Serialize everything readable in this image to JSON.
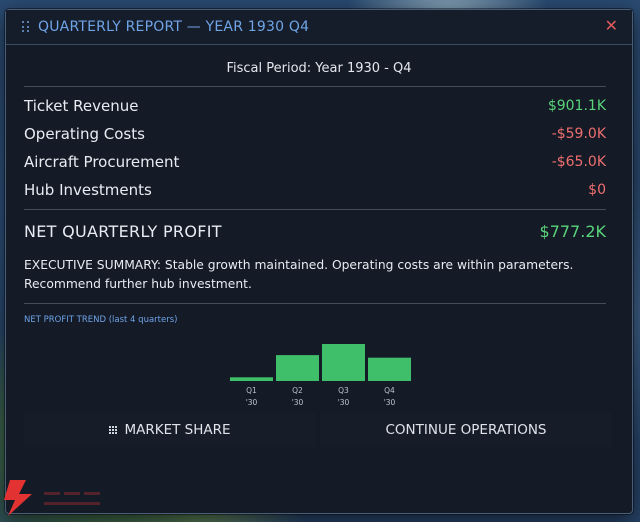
{
  "window": {
    "title": "QUARTERLY REPORT  —  YEAR 1930  Q4",
    "close_label": "✕",
    "fiscal_period": "Fiscal Period: Year 1930 - Q4"
  },
  "financials": [
    {
      "label": "Ticket Revenue",
      "value": "$901.1K",
      "kind": "positive"
    },
    {
      "label": "Operating Costs",
      "value": "-$59.0K",
      "kind": "negative"
    },
    {
      "label": "Aircraft Procurement",
      "value": "-$65.0K",
      "kind": "negative"
    },
    {
      "label": "Hub Investments",
      "value": "$0",
      "kind": "negative"
    }
  ],
  "net_profit": {
    "label": "NET QUARTERLY PROFIT",
    "value": "$777.2K"
  },
  "summary": "EXECUTIVE SUMMARY: Stable growth maintained. Operating costs are within parameters. Recommend further hub investment.",
  "trend_label": "NET PROFIT TREND  (last 4 quarters)",
  "chart_data": {
    "type": "bar",
    "categories": [
      "Q1",
      "Q2",
      "Q3",
      "Q4"
    ],
    "year_labels": [
      "'30",
      "'30",
      "'30",
      "'30"
    ],
    "values": [
      0.1,
      0.7,
      1.0,
      0.63
    ],
    "value_unit": "relative (fraction of tallest bar, no axis printed)",
    "bar_color": "#3fbf6a"
  },
  "buttons": {
    "market_share": "MARKET SHARE",
    "continue": "CONTINUE OPERATIONS"
  },
  "colors": {
    "accent": "#6fa4e8",
    "positive": "#59d47a",
    "negative": "#ef6f6f",
    "panel": "#141a26"
  }
}
